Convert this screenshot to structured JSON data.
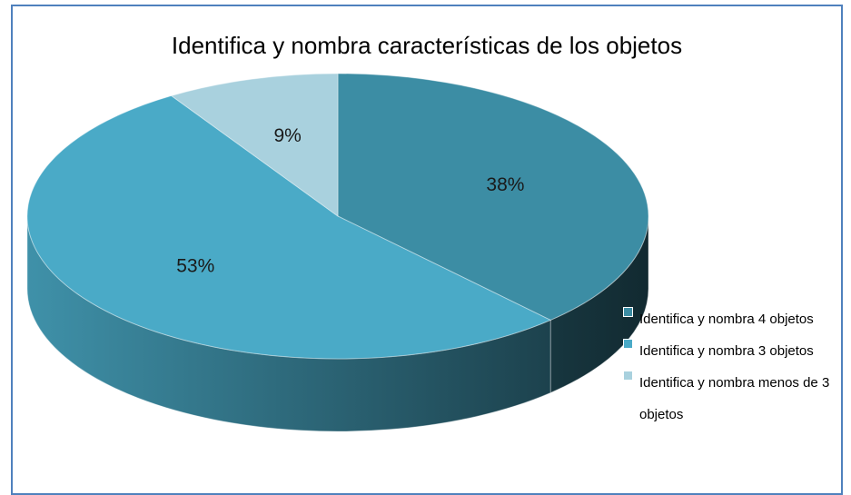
{
  "chart_data": {
    "type": "pie",
    "title": "Identifica y nombra características de los objetos",
    "categories": [
      "Identifica y nombra 4 objetos",
      "Identifica y nombra 3 objetos",
      "Identifica y nombra menos de 3 objetos"
    ],
    "values": [
      38,
      53,
      9
    ],
    "value_labels": [
      "38%",
      "53%",
      "9%"
    ],
    "colors": [
      "#3c8da4",
      "#4aaac7",
      "#a9d1de"
    ],
    "legend": "right"
  }
}
